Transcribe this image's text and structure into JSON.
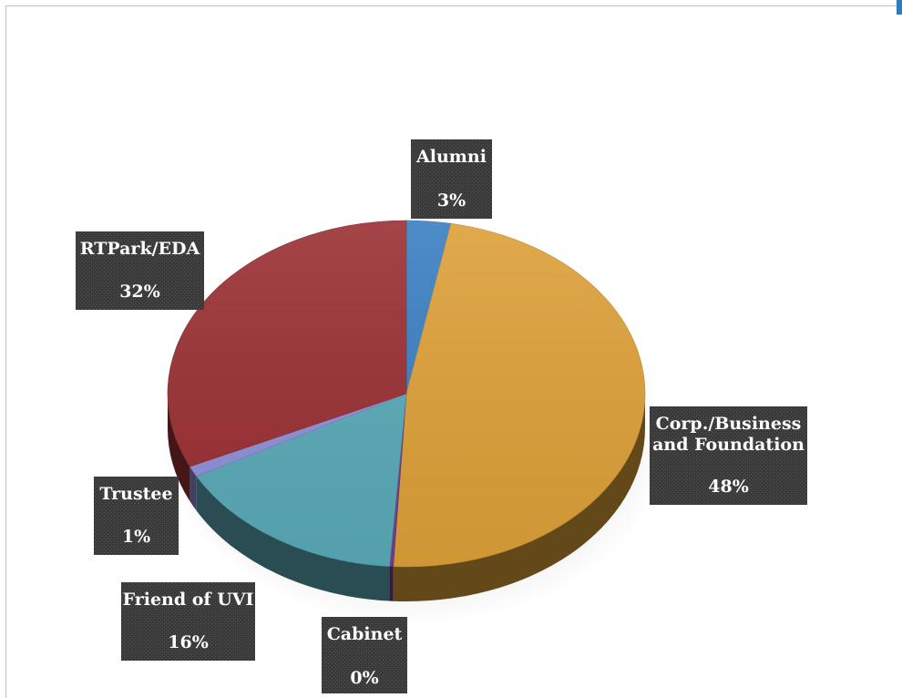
{
  "chart_data": {
    "type": "pie",
    "title": "",
    "style": "3d",
    "slices": [
      {
        "label": "Alumni",
        "percent_label": "3%",
        "value": 3,
        "color": "#3a7fc1"
      },
      {
        "label": "Corp./Business and Foundation",
        "label_lines": [
          "Corp./Business",
          "and Foundation"
        ],
        "percent_label": "48%",
        "value": 48,
        "color": "#dda038"
      },
      {
        "label": "Cabinet",
        "percent_label": "0%",
        "value": 0,
        "color": "#7a3c8c"
      },
      {
        "label": "Friend of UVI",
        "percent_label": "16%",
        "value": 16,
        "color": "#5aaab8"
      },
      {
        "label": "Trustee",
        "percent_label": "1%",
        "value": 1,
        "color": "#8f8fd8"
      },
      {
        "label": "RTPark/EDA",
        "percent_label": "32%",
        "value": 32,
        "color": "#9a3034"
      }
    ]
  }
}
